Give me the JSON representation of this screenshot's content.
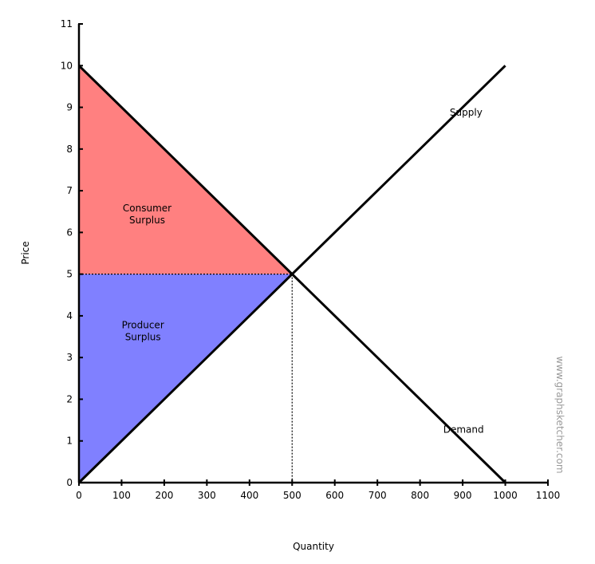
{
  "chart_data": {
    "type": "line",
    "xlabel": "Quantity",
    "ylabel": "Price",
    "xlim": [
      0,
      1100
    ],
    "ylim": [
      0,
      11
    ],
    "x_ticks": [
      0,
      100,
      200,
      300,
      400,
      500,
      600,
      700,
      800,
      900,
      1000,
      1100
    ],
    "y_ticks": [
      0,
      1,
      2,
      3,
      4,
      5,
      6,
      7,
      8,
      9,
      10,
      11
    ],
    "grid": false,
    "series": [
      {
        "name": "Demand",
        "points": [
          [
            0,
            10
          ],
          [
            1000,
            0
          ]
        ]
      },
      {
        "name": "Supply",
        "points": [
          [
            0,
            0
          ],
          [
            1000,
            10
          ]
        ]
      }
    ],
    "equilibrium": {
      "x": 500,
      "y": 5
    },
    "areas": [
      {
        "label": "Consumer Surplus",
        "lines": [
          "Consumer",
          "Surplus"
        ],
        "points": [
          [
            0,
            10
          ],
          [
            500,
            5
          ],
          [
            0,
            5
          ]
        ],
        "color": "#ff8080"
      },
      {
        "label": "Producer Surplus",
        "lines": [
          "Producer",
          "Surplus"
        ],
        "points": [
          [
            0,
            5
          ],
          [
            500,
            5
          ],
          [
            0,
            0
          ]
        ],
        "color": "#8080ff"
      }
    ],
    "series_labels": [
      {
        "text": "Supply",
        "x": 908,
        "y": 8.8
      },
      {
        "text": "Demand",
        "x": 902,
        "y": 1.2
      }
    ],
    "area_label_pos": [
      {
        "x": 160,
        "y": 6.5
      },
      {
        "x": 150,
        "y": 3.7
      }
    ],
    "watermark": "www.graphsketcher.com"
  }
}
